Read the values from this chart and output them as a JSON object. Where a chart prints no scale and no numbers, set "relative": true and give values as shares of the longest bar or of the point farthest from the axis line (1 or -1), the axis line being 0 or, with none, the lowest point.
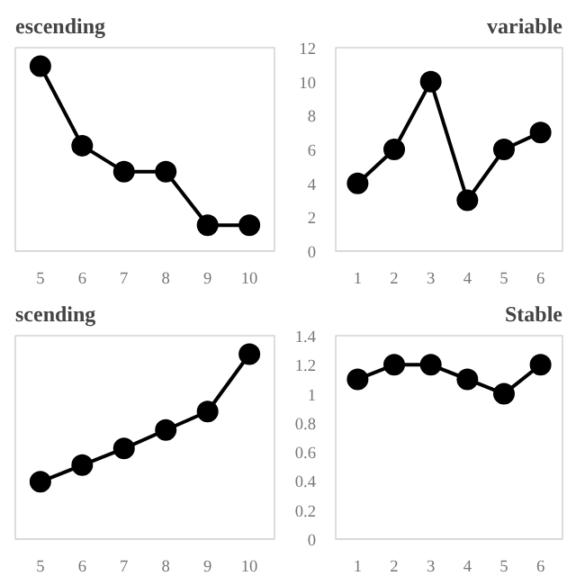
{
  "chart_data": [
    {
      "type": "line",
      "title": "escending",
      "categories": [
        "5",
        "6",
        "7",
        "8",
        "9",
        "10"
      ],
      "relative": true,
      "tick_labels": "x",
      "marker": "circle",
      "color": "#000000",
      "values": [
        1,
        0.57,
        0.43,
        0.43,
        0.14,
        0.14
      ]
    },
    {
      "type": "line",
      "title": "variable",
      "categories": [
        "1",
        "2",
        "3",
        "4",
        "5",
        "6"
      ],
      "ylim": [
        0,
        12
      ],
      "yticks": [
        0,
        2,
        4,
        6,
        8,
        10,
        12
      ],
      "marker": "circle",
      "color": "#000000",
      "values": [
        4,
        6,
        10,
        3,
        6,
        7
      ]
    },
    {
      "type": "line",
      "title": "scending",
      "categories": [
        "5",
        "6",
        "7",
        "8",
        "9",
        "10"
      ],
      "relative": true,
      "tick_labels": "x",
      "marker": "circle",
      "color": "#000000",
      "values": [
        0.31,
        0.4,
        0.49,
        0.59,
        0.69,
        1
      ]
    },
    {
      "type": "line",
      "title": "Stable",
      "categories": [
        "1",
        "2",
        "3",
        "4",
        "5",
        "6"
      ],
      "ylim": [
        0,
        1.4
      ],
      "yticks": [
        0,
        0.2,
        0.4,
        0.6,
        0.8,
        1,
        1.2,
        1.4
      ],
      "marker": "circle",
      "color": "#000000",
      "values": [
        1.1,
        1.2,
        1.2,
        1.1,
        1.0,
        1.2
      ]
    }
  ]
}
